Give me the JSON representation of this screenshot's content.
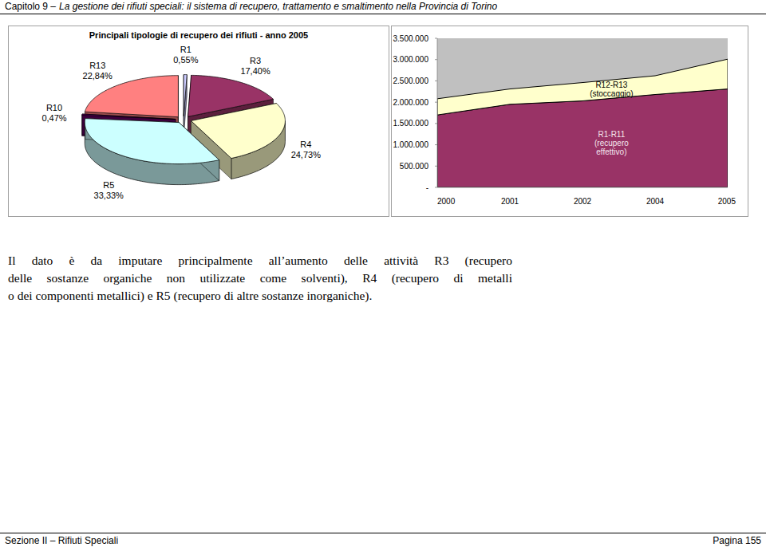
{
  "header": {
    "chapter": "Capitolo 9 –",
    "title": "La gestione dei rifiuti speciali: il sistema di recupero, trattamento e smaltimento nella Provincia di Torino"
  },
  "chart_data": [
    {
      "type": "pie",
      "title": "Principali tipologie di recupero dei rifiuti - anno 2005",
      "categories": [
        "R1",
        "R3",
        "R4",
        "R5",
        "R10",
        "R13"
      ],
      "values": [
        0.55,
        17.4,
        24.73,
        33.33,
        0.47,
        22.84
      ],
      "value_labels": [
        "0,55%",
        "17,40%",
        "24,73%",
        "33,33%",
        "0,47%",
        "22,84%"
      ],
      "colors": [
        "#ccccff",
        "#993366",
        "#ffffcc",
        "#ccffff",
        "#660066",
        "#ff8080"
      ],
      "data_labels": true
    },
    {
      "type": "area",
      "stacked": true,
      "categories": [
        "2000",
        "2001",
        "2002",
        "2004",
        "2005"
      ],
      "series": [
        {
          "name": "R1-R11 (recupero effettivo)",
          "color": "#993366",
          "values": [
            1700000,
            1950000,
            2030000,
            2180000,
            2310000
          ]
        },
        {
          "name": "R12-R13 (stoccaggio)",
          "color": "#ffffcc",
          "values": [
            380000,
            360000,
            430000,
            440000,
            700000
          ]
        }
      ],
      "ylim": [
        0,
        3500000
      ],
      "yticks": [
        {
          "value": 0,
          "label": "-"
        },
        {
          "value": 500000,
          "label": "500.000"
        },
        {
          "value": 1000000,
          "label": "1.000.000"
        },
        {
          "value": 1500000,
          "label": "1.500.000"
        },
        {
          "value": 2000000,
          "label": "2.000.000"
        },
        {
          "value": 2500000,
          "label": "2.500.000"
        },
        {
          "value": 3000000,
          "label": "3.000.000"
        },
        {
          "value": 3500000,
          "label": "3.500.000"
        }
      ],
      "grid": false
    }
  ],
  "body": {
    "lines": [
      "Il dato è da imputare principalmente all’aumento delle attività R3 (recupero",
      "delle sostanze organiche non utilizzate come solventi), R4 (recupero di metalli",
      "o dei componenti metallici) e R5 (recupero di altre sostanze inorganiche)."
    ]
  },
  "footer": {
    "section": "Sezione II – Rifiuti Speciali",
    "page": "Pagina 155"
  }
}
